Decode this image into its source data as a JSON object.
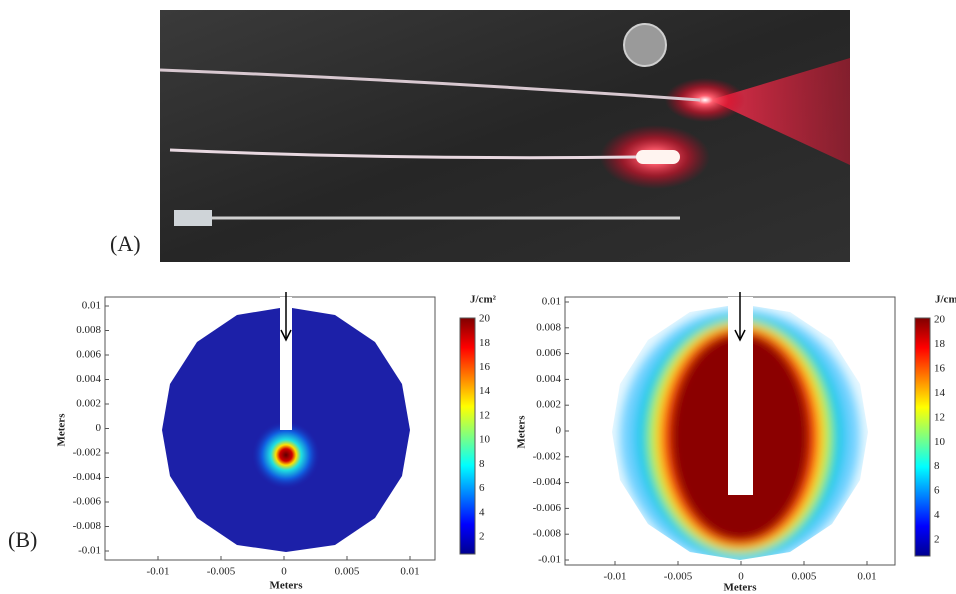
{
  "panel_a": {
    "label": "(A)"
  },
  "panel_b": {
    "label": "(B)",
    "plots": [
      {
        "x_label": "Meters",
        "y_label": "Meters",
        "colorbar_label": "J/cm²",
        "x_ticks": [
          "-0.01",
          "-0.005",
          "0",
          "0.005",
          "0.01"
        ],
        "y_ticks": [
          "0.01",
          "0.008",
          "0.006",
          "0.004",
          "0.002",
          "0",
          "-0.002",
          "-0.004",
          "-0.006",
          "-0.008",
          "-0.01"
        ],
        "colorbar_ticks": [
          "20",
          "18",
          "16",
          "14",
          "12",
          "10",
          "8",
          "6",
          "4",
          "2"
        ]
      },
      {
        "x_label": "Meters",
        "y_label": "Meters",
        "colorbar_label": "J/cm²",
        "x_ticks": [
          "-0.01",
          "-0.005",
          "0",
          "0.005",
          "0.01"
        ],
        "y_ticks": [
          "0.01",
          "0.008",
          "0.006",
          "0.004",
          "0.002",
          "0",
          "-0.002",
          "-0.004",
          "-0.006",
          "-0.008",
          "-0.01"
        ],
        "colorbar_ticks": [
          "20",
          "18",
          "16",
          "14",
          "12",
          "10",
          "8",
          "6",
          "4",
          "2"
        ]
      }
    ]
  }
}
